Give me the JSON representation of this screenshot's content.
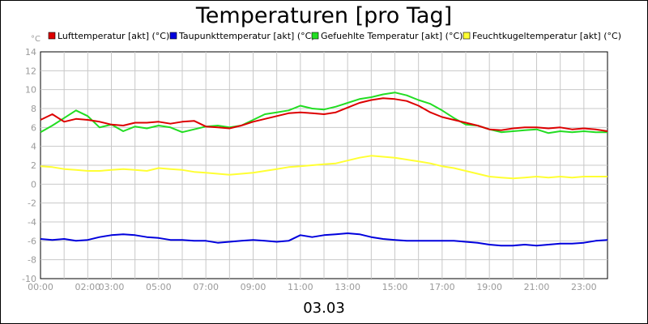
{
  "chart_data": {
    "type": "line",
    "title": "Temperaturen [pro Tag]",
    "ylabel": "°C",
    "xlabel": "03.03",
    "ylim": [
      -10,
      14
    ],
    "yticks": [
      14,
      12,
      10,
      8,
      6,
      4,
      2,
      0,
      -2,
      -4,
      -6,
      -8,
      -10
    ],
    "xlim": [
      0,
      24
    ],
    "xticks": [
      {
        "t": 0,
        "label": "00:00"
      },
      {
        "t": 2,
        "label": "02:00"
      },
      {
        "t": 3,
        "label": "03:00"
      },
      {
        "t": 5,
        "label": "05:00"
      },
      {
        "t": 7,
        "label": "07:00"
      },
      {
        "t": 9,
        "label": "09:00"
      },
      {
        "t": 11,
        "label": "11:00"
      },
      {
        "t": 13,
        "label": "13:00"
      },
      {
        "t": 15,
        "label": "15:00"
      },
      {
        "t": 17,
        "label": "17:00"
      },
      {
        "t": 19,
        "label": "19:00"
      },
      {
        "t": 21,
        "label": "21:00"
      },
      {
        "t": 23,
        "label": "23:00"
      }
    ],
    "grid": true,
    "legend_position": "top",
    "x": [
      0,
      0.5,
      1,
      1.5,
      2,
      2.5,
      3,
      3.5,
      4,
      4.5,
      5,
      5.5,
      6,
      6.5,
      7,
      7.5,
      8,
      8.5,
      9,
      9.5,
      10,
      10.5,
      11,
      11.5,
      12,
      12.5,
      13,
      13.5,
      14,
      14.5,
      15,
      15.5,
      16,
      16.5,
      17,
      17.5,
      18,
      18.5,
      19,
      19.5,
      20,
      20.5,
      21,
      21.5,
      22,
      22.5,
      23,
      23.5,
      24
    ],
    "series": [
      {
        "name": "Lufttemperatur [akt] (°C)",
        "color": "#dd0000",
        "values": [
          6.8,
          7.4,
          6.6,
          6.9,
          6.8,
          6.6,
          6.3,
          6.2,
          6.5,
          6.5,
          6.6,
          6.4,
          6.6,
          6.7,
          6.1,
          6.0,
          5.9,
          6.2,
          6.6,
          6.9,
          7.2,
          7.5,
          7.6,
          7.5,
          7.4,
          7.6,
          8.1,
          8.6,
          8.9,
          9.1,
          9.0,
          8.8,
          8.3,
          7.6,
          7.1,
          6.8,
          6.5,
          6.2,
          5.8,
          5.7,
          5.9,
          6.0,
          6.0,
          5.9,
          6.0,
          5.8,
          5.9,
          5.8,
          5.6
        ]
      },
      {
        "name": "Taupunkttemperatur [akt] (°C)",
        "color": "#0000dd",
        "values": [
          -5.8,
          -5.9,
          -5.8,
          -6.0,
          -5.9,
          -5.6,
          -5.4,
          -5.3,
          -5.4,
          -5.6,
          -5.7,
          -5.9,
          -5.9,
          -6.0,
          -6.0,
          -6.2,
          -6.1,
          -6.0,
          -5.9,
          -6.0,
          -6.1,
          -6.0,
          -5.4,
          -5.6,
          -5.4,
          -5.3,
          -5.2,
          -5.3,
          -5.6,
          -5.8,
          -5.9,
          -6.0,
          -6.0,
          -6.0,
          -6.0,
          -6.0,
          -6.1,
          -6.2,
          -6.4,
          -6.5,
          -6.5,
          -6.4,
          -6.5,
          -6.4,
          -6.3,
          -6.3,
          -6.2,
          -6.0,
          -5.9
        ]
      },
      {
        "name": "Gefuehlte Temperatur [akt] (°C)",
        "color": "#22dd22",
        "values": [
          5.5,
          6.2,
          7.0,
          7.8,
          7.2,
          6.0,
          6.3,
          5.6,
          6.1,
          5.9,
          6.2,
          6.0,
          5.5,
          5.8,
          6.1,
          6.2,
          6.0,
          6.2,
          6.8,
          7.4,
          7.6,
          7.8,
          8.3,
          8.0,
          7.9,
          8.2,
          8.6,
          9.0,
          9.2,
          9.5,
          9.7,
          9.4,
          8.9,
          8.5,
          7.8,
          7.0,
          6.3,
          6.2,
          5.8,
          5.5,
          5.6,
          5.7,
          5.8,
          5.4,
          5.6,
          5.5,
          5.6,
          5.5,
          5.5
        ]
      },
      {
        "name": "Feuchtkugeltemperatur [akt] (°C)",
        "color": "#ffff33",
        "values": [
          1.9,
          1.8,
          1.6,
          1.5,
          1.4,
          1.4,
          1.5,
          1.6,
          1.5,
          1.4,
          1.7,
          1.6,
          1.5,
          1.3,
          1.2,
          1.1,
          1.0,
          1.1,
          1.2,
          1.4,
          1.6,
          1.8,
          1.9,
          2.0,
          2.1,
          2.2,
          2.5,
          2.8,
          3.0,
          2.9,
          2.8,
          2.6,
          2.4,
          2.2,
          1.9,
          1.7,
          1.4,
          1.1,
          0.8,
          0.7,
          0.6,
          0.7,
          0.8,
          0.7,
          0.8,
          0.7,
          0.8,
          0.8,
          0.8
        ]
      }
    ]
  }
}
